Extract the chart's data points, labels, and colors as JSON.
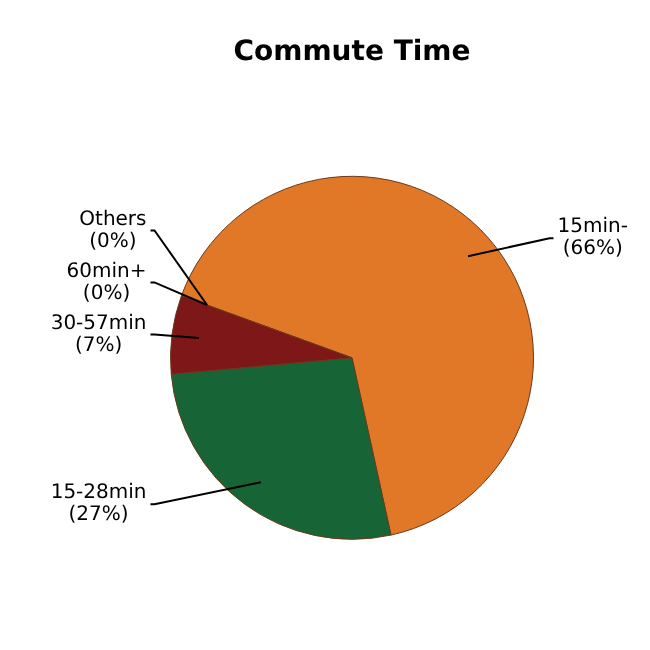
{
  "chart_data": {
    "type": "pie",
    "title": "Commute Time",
    "categories": [
      "15min-",
      "15-28min",
      "30-57min",
      "60min+",
      "Others"
    ],
    "values": [
      66,
      27,
      7,
      0,
      0
    ],
    "value_labels": [
      "(66%)",
      "(27%)",
      "(7%)",
      "(0%)",
      "(0%)"
    ],
    "colors": [
      "#e07828",
      "#176437",
      "#7e1717",
      "#3a5fa0",
      "#9a9a9a"
    ],
    "legend": false
  }
}
